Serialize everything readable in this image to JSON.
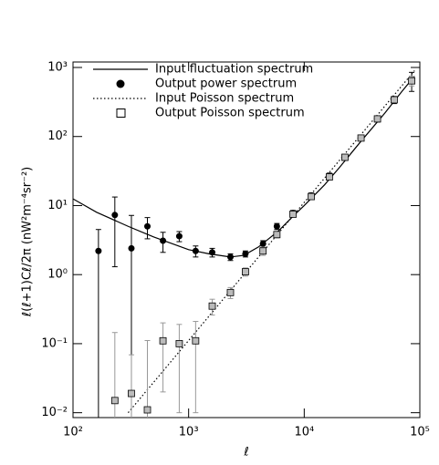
{
  "chart_data": {
    "type": "line",
    "x_label": "ℓ",
    "y_label": "ℓ(ℓ+1)Cℓ/2π   (nW²m⁻⁴sr⁻²)",
    "xscale": "log",
    "yscale": "log",
    "xlim": [
      100,
      100000
    ],
    "ylim": [
      0.0085,
      1200
    ],
    "xticks": [
      {
        "value": 100,
        "label": "10²"
      },
      {
        "value": 1000,
        "label": "10³"
      },
      {
        "value": 10000,
        "label": "10⁴"
      },
      {
        "value": 100000,
        "label": "10⁵"
      }
    ],
    "yticks": [
      {
        "value": 0.01,
        "label": "10⁻²"
      },
      {
        "value": 0.1,
        "label": "10⁻¹"
      },
      {
        "value": 1,
        "label": "10⁰"
      },
      {
        "value": 10,
        "label": "10¹"
      },
      {
        "value": 100,
        "label": "10²"
      },
      {
        "value": 1000,
        "label": "10³"
      }
    ],
    "legend": "upper left",
    "series": [
      {
        "name": "Input fluctuation spectrum",
        "type": "line",
        "dash": "solid",
        "color": "#000000",
        "x": [
          100,
          160,
          300,
          500,
          1000,
          1500,
          2300,
          3000,
          4000,
          6000,
          8000,
          10000,
          15000,
          20000,
          30000,
          50000,
          70000,
          90000
        ],
        "values": [
          12.5,
          8,
          5,
          3.5,
          2.3,
          2.0,
          1.8,
          1.9,
          2.5,
          4.3,
          7,
          10,
          20,
          35,
          80,
          220,
          450,
          750
        ]
      },
      {
        "name": "Output power spectrum",
        "type": "scatter",
        "marker": "circle",
        "color": "#000000",
        "error_color": "#000000",
        "x": [
          166,
          230,
          320,
          440,
          600,
          830,
          1150,
          1600,
          2300,
          3100,
          4400,
          5800,
          8000,
          11500,
          16500,
          22500,
          31000,
          43000,
          60000,
          85000
        ],
        "values": [
          2.2,
          7.3,
          2.4,
          5.0,
          3.1,
          3.6,
          2.2,
          2.1,
          1.8,
          2.0,
          2.8,
          5.0,
          7.8,
          14,
          27,
          50,
          95,
          180,
          340,
          650
        ],
        "errors": [
          2.3,
          6,
          4.8,
          1.7,
          1.0,
          0.6,
          0.4,
          0.3,
          0.2,
          0.2,
          0.3,
          0.5,
          0.7,
          1.2,
          2.5,
          5,
          8,
          18,
          40,
          200
        ]
      },
      {
        "name": "Input Poisson spectrum",
        "type": "line",
        "dash": "dotted",
        "color": "#000000",
        "x": [
          300,
          90000
        ],
        "values": [
          0.01,
          900
        ]
      },
      {
        "name": "Output Poisson spectrum",
        "type": "scatter",
        "marker": "square",
        "color": "#bbbbbb",
        "error_color": "#999999",
        "x": [
          230,
          320,
          440,
          600,
          830,
          1150,
          1600,
          2300,
          3100,
          4400,
          5800,
          8000,
          11500,
          16500,
          22500,
          31000,
          43000,
          60000,
          85000
        ],
        "values": [
          0.015,
          0.019,
          0.011,
          0.11,
          0.1,
          0.11,
          0.35,
          0.55,
          1.1,
          2.2,
          3.8,
          7.5,
          13.5,
          26,
          50,
          95,
          180,
          340,
          640
        ],
        "errors": [
          0.13,
          0.05,
          0.1,
          0.09,
          0.09,
          0.1,
          0.09,
          0.1,
          0.15,
          0.3,
          0.4,
          0.6,
          1,
          2,
          4,
          8,
          15,
          30,
          100
        ]
      }
    ]
  }
}
